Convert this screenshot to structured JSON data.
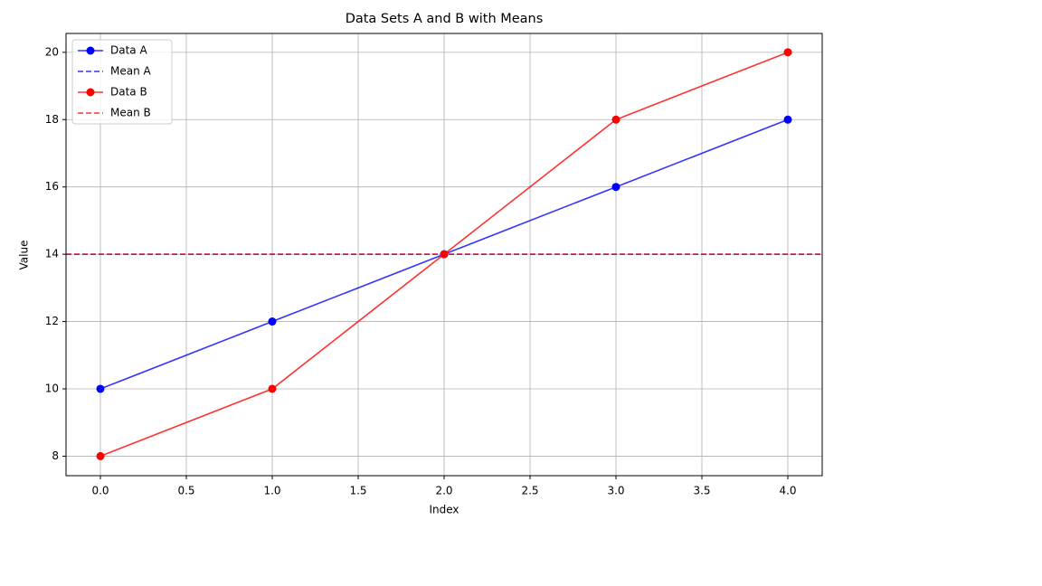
{
  "chart_data": {
    "type": "line",
    "title": "Data Sets A and B with Means",
    "xlabel": "Index",
    "ylabel": "Value",
    "x": [
      0,
      1,
      2,
      3,
      4
    ],
    "series": [
      {
        "name": "Data A",
        "color": "#0000ff",
        "marker": "o",
        "values": [
          10,
          12,
          14,
          16,
          18
        ]
      },
      {
        "name": "Mean A",
        "color": "#0000ff",
        "kind": "hline",
        "linestyle": "dashed",
        "value": 14
      },
      {
        "name": "Data B",
        "color": "#ff0000",
        "marker": "o",
        "values": [
          8,
          10,
          14,
          18,
          20
        ]
      },
      {
        "name": "Mean B",
        "color": "#ff0000",
        "kind": "hline",
        "linestyle": "dashed",
        "value": 14
      }
    ],
    "xlim": [
      -0.2,
      4.2
    ],
    "xticks": [
      {
        "value": 0,
        "label": "0.0"
      },
      0.5,
      {
        "value": 1,
        "label": "1.0"
      },
      1.5,
      {
        "value": 2,
        "label": "2.0"
      },
      2.5,
      {
        "value": 3,
        "label": "3.0"
      },
      3.5,
      {
        "value": 4,
        "label": "4.0"
      }
    ],
    "ylim": [
      7.42,
      20.56
    ],
    "yticks": [
      8,
      10,
      12,
      14,
      16,
      18,
      20
    ],
    "grid": true,
    "legend": "upper left"
  }
}
